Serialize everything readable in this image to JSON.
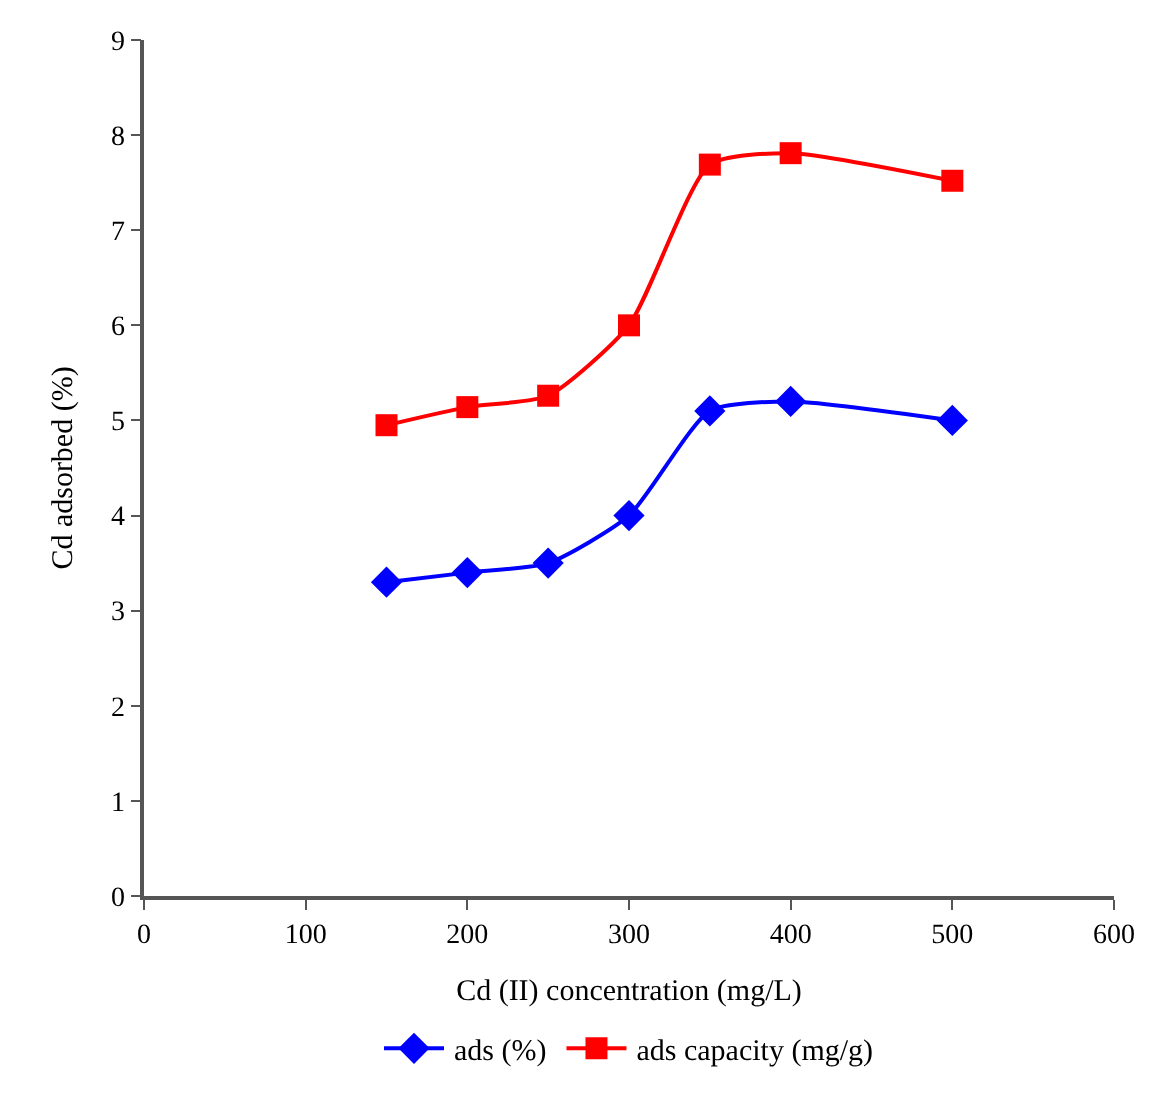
{
  "chart_data": {
    "type": "line",
    "xlabel": "Cd (II) concentration (mg/L)",
    "ylabel": "Cd adsorbed (%)",
    "x": [
      150,
      200,
      250,
      300,
      350,
      400,
      500
    ],
    "series": [
      {
        "name": "ads (%)",
        "color": "#0000ff",
        "marker": "diamond",
        "values": [
          3.3,
          3.4,
          3.5,
          4.0,
          5.1,
          5.2,
          5.0
        ]
      },
      {
        "name": "ads capacity (mg/g)",
        "color": "#ff0000",
        "marker": "square",
        "values": [
          4.95,
          5.14,
          5.26,
          6.0,
          7.69,
          7.81,
          7.52
        ]
      }
    ],
    "xlim": [
      0,
      600
    ],
    "xticks": [
      0,
      100,
      200,
      300,
      400,
      500,
      600
    ],
    "ylim": [
      0,
      9
    ],
    "yticks": [
      0,
      1,
      2,
      3,
      4,
      5,
      6,
      7,
      8,
      9
    ],
    "legend": "bottom",
    "line_style": "solid"
  }
}
